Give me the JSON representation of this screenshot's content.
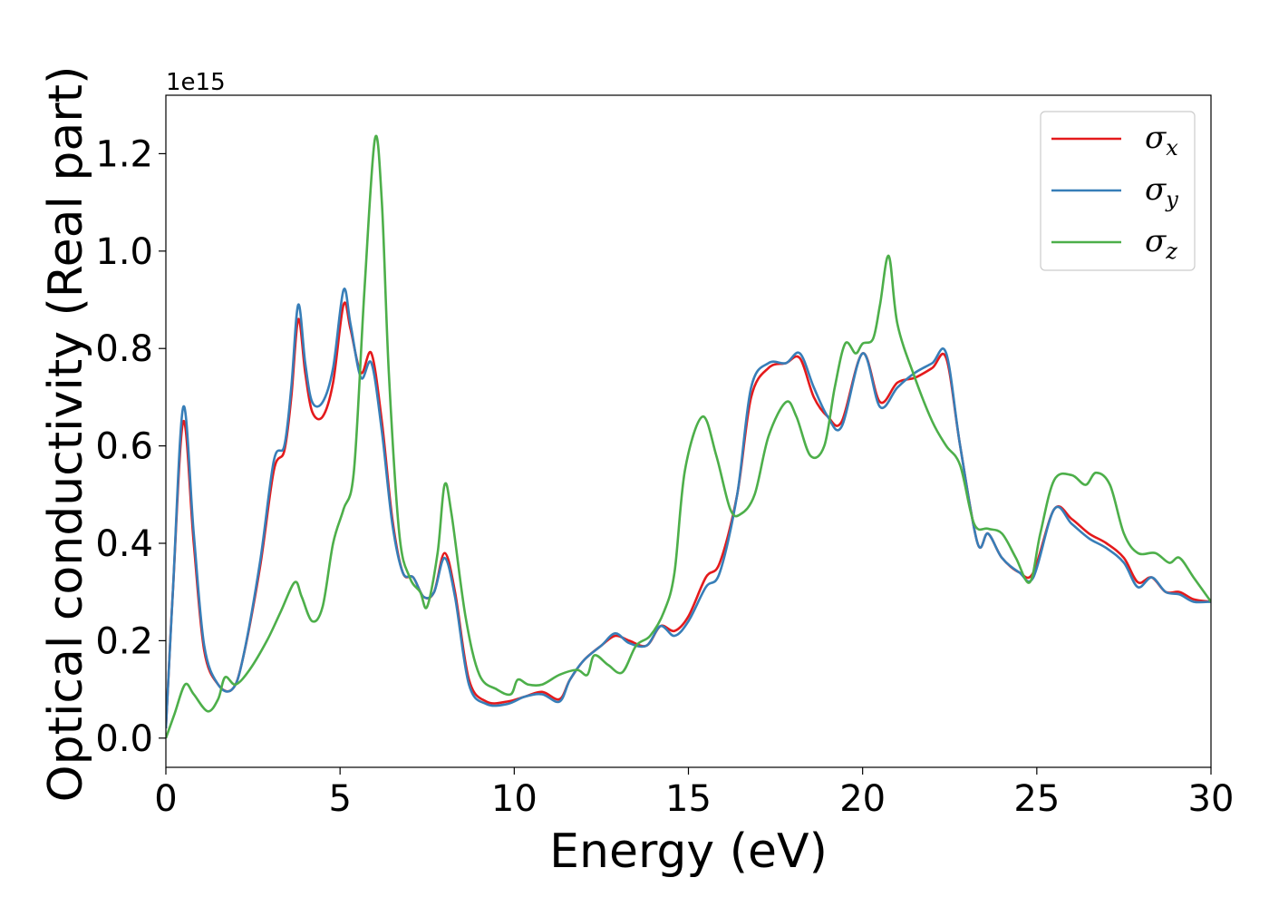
{
  "chart_data": {
    "type": "line",
    "xlabel": "Energy (eV)",
    "ylabel": "Optical conductivity (Real part)",
    "y_offset_label": "1e15",
    "xlim": [
      0,
      30
    ],
    "ylim": [
      -0.06,
      1.32
    ],
    "xticks": [
      0,
      5,
      10,
      15,
      20,
      25,
      30
    ],
    "xtick_labels": [
      "0",
      "5",
      "10",
      "15",
      "20",
      "25",
      "30"
    ],
    "yticks": [
      0.0,
      0.2,
      0.4,
      0.6,
      0.8,
      1.0,
      1.2
    ],
    "ytick_labels": [
      "0.0",
      "0.2",
      "0.4",
      "0.6",
      "0.8",
      "1.0",
      "1.2"
    ],
    "grid": false,
    "legend_position": "top-right",
    "series": [
      {
        "name": "σ_x",
        "symbol": "σ",
        "subscript": "x",
        "color": "#e41a1c",
        "points": [
          [
            0,
            0.02
          ],
          [
            0.2,
            0.3
          ],
          [
            0.5,
            0.65
          ],
          [
            0.8,
            0.4
          ],
          [
            1.1,
            0.18
          ],
          [
            1.5,
            0.11
          ],
          [
            1.9,
            0.1
          ],
          [
            2.2,
            0.16
          ],
          [
            2.7,
            0.35
          ],
          [
            3.1,
            0.55
          ],
          [
            3.4,
            0.59
          ],
          [
            3.6,
            0.7
          ],
          [
            3.8,
            0.86
          ],
          [
            4.0,
            0.75
          ],
          [
            4.2,
            0.67
          ],
          [
            4.5,
            0.66
          ],
          [
            4.8,
            0.73
          ],
          [
            5.1,
            0.89
          ],
          [
            5.3,
            0.84
          ],
          [
            5.6,
            0.75
          ],
          [
            5.9,
            0.79
          ],
          [
            6.2,
            0.65
          ],
          [
            6.5,
            0.45
          ],
          [
            6.8,
            0.34
          ],
          [
            7.1,
            0.33
          ],
          [
            7.4,
            0.29
          ],
          [
            7.7,
            0.3
          ],
          [
            8.0,
            0.38
          ],
          [
            8.3,
            0.3
          ],
          [
            8.7,
            0.12
          ],
          [
            9.2,
            0.075
          ],
          [
            9.8,
            0.075
          ],
          [
            10.3,
            0.085
          ],
          [
            10.8,
            0.095
          ],
          [
            11.3,
            0.08
          ],
          [
            11.6,
            0.12
          ],
          [
            12.0,
            0.16
          ],
          [
            12.5,
            0.19
          ],
          [
            12.9,
            0.21
          ],
          [
            13.3,
            0.2
          ],
          [
            13.8,
            0.19
          ],
          [
            14.2,
            0.23
          ],
          [
            14.6,
            0.22
          ],
          [
            15.0,
            0.25
          ],
          [
            15.5,
            0.33
          ],
          [
            15.9,
            0.36
          ],
          [
            16.4,
            0.5
          ],
          [
            16.8,
            0.7
          ],
          [
            17.3,
            0.76
          ],
          [
            17.8,
            0.77
          ],
          [
            18.2,
            0.78
          ],
          [
            18.6,
            0.7
          ],
          [
            19.0,
            0.66
          ],
          [
            19.4,
            0.65
          ],
          [
            20.0,
            0.79
          ],
          [
            20.5,
            0.69
          ],
          [
            21.0,
            0.73
          ],
          [
            21.5,
            0.74
          ],
          [
            22.0,
            0.76
          ],
          [
            22.4,
            0.78
          ],
          [
            22.8,
            0.6
          ],
          [
            23.3,
            0.4
          ],
          [
            23.6,
            0.42
          ],
          [
            24.0,
            0.37
          ],
          [
            24.5,
            0.34
          ],
          [
            24.9,
            0.34
          ],
          [
            25.5,
            0.47
          ],
          [
            26.0,
            0.45
          ],
          [
            26.5,
            0.42
          ],
          [
            27.0,
            0.4
          ],
          [
            27.5,
            0.37
          ],
          [
            27.9,
            0.32
          ],
          [
            28.3,
            0.33
          ],
          [
            28.7,
            0.3
          ],
          [
            29.1,
            0.3
          ],
          [
            29.5,
            0.285
          ],
          [
            30.0,
            0.28
          ]
        ]
      },
      {
        "name": "σ_y",
        "symbol": "σ",
        "subscript": "y",
        "color": "#377eb8",
        "points": [
          [
            0,
            0.02
          ],
          [
            0.2,
            0.3
          ],
          [
            0.5,
            0.68
          ],
          [
            0.8,
            0.42
          ],
          [
            1.1,
            0.19
          ],
          [
            1.5,
            0.11
          ],
          [
            1.9,
            0.1
          ],
          [
            2.2,
            0.16
          ],
          [
            2.7,
            0.36
          ],
          [
            3.1,
            0.57
          ],
          [
            3.4,
            0.6
          ],
          [
            3.6,
            0.72
          ],
          [
            3.8,
            0.89
          ],
          [
            4.0,
            0.77
          ],
          [
            4.2,
            0.69
          ],
          [
            4.5,
            0.69
          ],
          [
            4.8,
            0.76
          ],
          [
            5.1,
            0.92
          ],
          [
            5.3,
            0.85
          ],
          [
            5.6,
            0.74
          ],
          [
            5.9,
            0.77
          ],
          [
            6.2,
            0.63
          ],
          [
            6.5,
            0.44
          ],
          [
            6.8,
            0.34
          ],
          [
            7.1,
            0.33
          ],
          [
            7.4,
            0.29
          ],
          [
            7.7,
            0.3
          ],
          [
            8.0,
            0.37
          ],
          [
            8.3,
            0.29
          ],
          [
            8.7,
            0.11
          ],
          [
            9.2,
            0.07
          ],
          [
            9.8,
            0.07
          ],
          [
            10.3,
            0.085
          ],
          [
            10.8,
            0.09
          ],
          [
            11.3,
            0.075
          ],
          [
            11.6,
            0.12
          ],
          [
            12.0,
            0.16
          ],
          [
            12.5,
            0.19
          ],
          [
            12.9,
            0.215
          ],
          [
            13.3,
            0.195
          ],
          [
            13.8,
            0.19
          ],
          [
            14.2,
            0.23
          ],
          [
            14.6,
            0.21
          ],
          [
            15.0,
            0.24
          ],
          [
            15.5,
            0.31
          ],
          [
            15.9,
            0.34
          ],
          [
            16.4,
            0.5
          ],
          [
            16.8,
            0.72
          ],
          [
            17.3,
            0.77
          ],
          [
            17.8,
            0.77
          ],
          [
            18.2,
            0.79
          ],
          [
            18.6,
            0.72
          ],
          [
            19.0,
            0.66
          ],
          [
            19.4,
            0.64
          ],
          [
            20.0,
            0.79
          ],
          [
            20.5,
            0.68
          ],
          [
            21.0,
            0.72
          ],
          [
            21.5,
            0.75
          ],
          [
            22.0,
            0.77
          ],
          [
            22.4,
            0.79
          ],
          [
            22.8,
            0.6
          ],
          [
            23.3,
            0.4
          ],
          [
            23.6,
            0.42
          ],
          [
            24.0,
            0.37
          ],
          [
            24.5,
            0.34
          ],
          [
            24.9,
            0.33
          ],
          [
            25.5,
            0.47
          ],
          [
            26.0,
            0.44
          ],
          [
            26.5,
            0.41
          ],
          [
            27.0,
            0.39
          ],
          [
            27.5,
            0.36
          ],
          [
            27.9,
            0.31
          ],
          [
            28.3,
            0.33
          ],
          [
            28.7,
            0.3
          ],
          [
            29.1,
            0.295
          ],
          [
            29.5,
            0.28
          ],
          [
            30.0,
            0.28
          ]
        ]
      },
      {
        "name": "σ_z",
        "symbol": "σ",
        "subscript": "z",
        "color": "#4daf4a",
        "points": [
          [
            0,
            0.0
          ],
          [
            0.25,
            0.05
          ],
          [
            0.55,
            0.11
          ],
          [
            0.8,
            0.09
          ],
          [
            1.2,
            0.055
          ],
          [
            1.5,
            0.08
          ],
          [
            1.7,
            0.125
          ],
          [
            2.0,
            0.11
          ],
          [
            2.4,
            0.14
          ],
          [
            2.9,
            0.2
          ],
          [
            3.3,
            0.26
          ],
          [
            3.7,
            0.32
          ],
          [
            3.9,
            0.29
          ],
          [
            4.2,
            0.24
          ],
          [
            4.5,
            0.27
          ],
          [
            4.8,
            0.4
          ],
          [
            5.1,
            0.47
          ],
          [
            5.4,
            0.55
          ],
          [
            5.7,
            0.92
          ],
          [
            6.0,
            1.23
          ],
          [
            6.2,
            1.1
          ],
          [
            6.4,
            0.75
          ],
          [
            6.7,
            0.42
          ],
          [
            7.0,
            0.33
          ],
          [
            7.3,
            0.3
          ],
          [
            7.5,
            0.27
          ],
          [
            7.8,
            0.38
          ],
          [
            8.0,
            0.52
          ],
          [
            8.2,
            0.46
          ],
          [
            8.6,
            0.25
          ],
          [
            9.0,
            0.13
          ],
          [
            9.5,
            0.1
          ],
          [
            9.9,
            0.09
          ],
          [
            10.1,
            0.12
          ],
          [
            10.4,
            0.11
          ],
          [
            10.8,
            0.11
          ],
          [
            11.3,
            0.13
          ],
          [
            11.8,
            0.14
          ],
          [
            12.1,
            0.13
          ],
          [
            12.3,
            0.17
          ],
          [
            12.7,
            0.15
          ],
          [
            13.1,
            0.135
          ],
          [
            13.5,
            0.19
          ],
          [
            13.9,
            0.21
          ],
          [
            14.3,
            0.26
          ],
          [
            14.6,
            0.34
          ],
          [
            14.9,
            0.55
          ],
          [
            15.4,
            0.66
          ],
          [
            15.8,
            0.58
          ],
          [
            16.2,
            0.47
          ],
          [
            16.5,
            0.46
          ],
          [
            16.9,
            0.5
          ],
          [
            17.3,
            0.62
          ],
          [
            17.8,
            0.69
          ],
          [
            18.1,
            0.66
          ],
          [
            18.5,
            0.58
          ],
          [
            18.9,
            0.6
          ],
          [
            19.2,
            0.72
          ],
          [
            19.5,
            0.81
          ],
          [
            19.8,
            0.79
          ],
          [
            20.0,
            0.81
          ],
          [
            20.3,
            0.82
          ],
          [
            20.5,
            0.89
          ],
          [
            20.75,
            0.99
          ],
          [
            21.0,
            0.85
          ],
          [
            21.5,
            0.74
          ],
          [
            22.0,
            0.65
          ],
          [
            22.4,
            0.6
          ],
          [
            22.8,
            0.56
          ],
          [
            23.2,
            0.44
          ],
          [
            23.6,
            0.43
          ],
          [
            24.0,
            0.42
          ],
          [
            24.4,
            0.37
          ],
          [
            24.8,
            0.32
          ],
          [
            25.1,
            0.42
          ],
          [
            25.5,
            0.53
          ],
          [
            26.0,
            0.54
          ],
          [
            26.4,
            0.52
          ],
          [
            26.7,
            0.545
          ],
          [
            27.1,
            0.52
          ],
          [
            27.5,
            0.42
          ],
          [
            27.9,
            0.38
          ],
          [
            28.4,
            0.38
          ],
          [
            28.8,
            0.36
          ],
          [
            29.1,
            0.37
          ],
          [
            29.5,
            0.33
          ],
          [
            30.0,
            0.28
          ]
        ]
      }
    ]
  }
}
